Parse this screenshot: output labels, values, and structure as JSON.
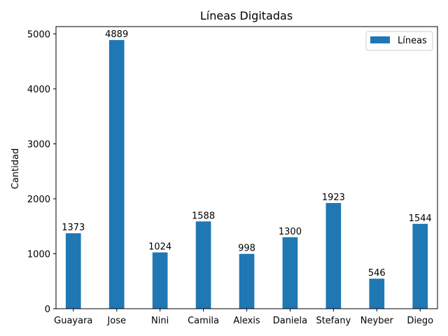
{
  "chart_data": {
    "type": "bar",
    "title": "Líneas Digitadas",
    "xlabel": "",
    "ylabel": "Cantidad",
    "categories": [
      "Guayara",
      "Jose",
      "Nini",
      "Camila",
      "Alexis",
      "Daniela",
      "Stefany",
      "Neyber",
      "Diego"
    ],
    "series": [
      {
        "name": "Líneas",
        "values": [
          1373,
          4889,
          1024,
          1588,
          998,
          1300,
          1923,
          546,
          1544
        ],
        "color": "#1f77b4"
      }
    ],
    "ylim": [
      0,
      5133
    ],
    "yticks": [
      0,
      1000,
      2000,
      3000,
      4000,
      5000
    ],
    "grid": false,
    "legend": "top-right"
  }
}
